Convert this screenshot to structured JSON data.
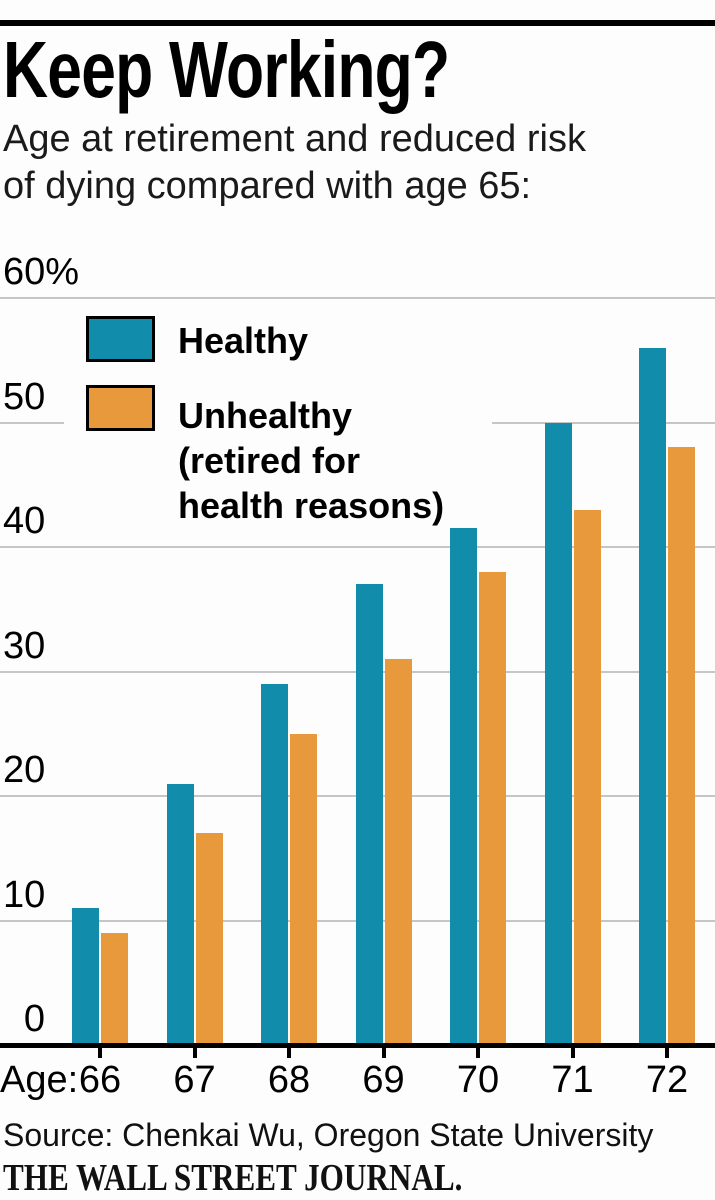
{
  "page": {
    "background": "#fdfdfd",
    "top_rule_color": "#000000"
  },
  "header": {
    "title": "Keep Working?",
    "subtitle": "Age at retirement and reduced risk\nof dying compared with age 65:"
  },
  "chart_data": {
    "type": "bar",
    "title": "Keep Working?",
    "subtitle": "Age at retirement and reduced risk of dying compared with age 65:",
    "categories": [
      "66",
      "67",
      "68",
      "69",
      "70",
      "71",
      "72"
    ],
    "x_axis_prefix": "Age:",
    "series": [
      {
        "name": "Healthy",
        "color": "#128cab",
        "values": [
          11,
          21,
          29,
          37,
          44,
          50,
          56
        ]
      },
      {
        "name": "Unhealthy (retired for health reasons)",
        "color": "#e8993c",
        "values": [
          9,
          17,
          25,
          31,
          38,
          43,
          48
        ]
      }
    ],
    "unit": "%",
    "ylim": [
      0,
      60
    ],
    "yticks": [
      0,
      10,
      20,
      30,
      40,
      50,
      60
    ],
    "ytick_labels": [
      "0",
      "10",
      "20",
      "30",
      "40",
      "50",
      "60%"
    ],
    "grid": true,
    "gridline_color": "#c6c6c6",
    "axis_color": "#000000",
    "legend_position": "top-left-inside"
  },
  "legend": {
    "healthy_label": "Healthy",
    "unhealthy_label": "Unhealthy\n(retired for\nhealth reasons)"
  },
  "footer": {
    "source": "Source: Chenkai Wu, Oregon State University",
    "credit": "THE WALL STREET JOURNAL."
  }
}
